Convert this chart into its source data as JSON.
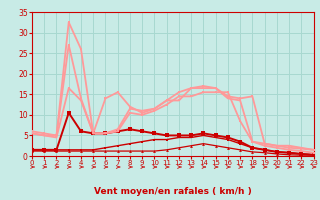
{
  "xlabel": "Vent moyen/en rafales ( km/h )",
  "xlim": [
    0,
    23
  ],
  "ylim": [
    0,
    35
  ],
  "yticks": [
    0,
    5,
    10,
    15,
    20,
    25,
    30,
    35
  ],
  "xticks": [
    0,
    1,
    2,
    3,
    4,
    5,
    6,
    7,
    8,
    9,
    10,
    11,
    12,
    13,
    14,
    15,
    16,
    17,
    18,
    19,
    20,
    21,
    22,
    23
  ],
  "bg_color": "#c8ebe6",
  "grid_color": "#a8d8d0",
  "series": [
    {
      "x": [
        0,
        1,
        2,
        3,
        4,
        5,
        6,
        7,
        8,
        9,
        10,
        11,
        12,
        13,
        14,
        15,
        16,
        17,
        18,
        19,
        20,
        21,
        22,
        23
      ],
      "y": [
        1.2,
        1.2,
        1.2,
        1.2,
        1.2,
        1.2,
        1.2,
        1.2,
        1.2,
        1.2,
        1.2,
        1.5,
        2.0,
        2.5,
        3.0,
        2.5,
        2.0,
        1.5,
        1.0,
        0.8,
        0.5,
        0.3,
        0.2,
        0.2
      ],
      "color": "#cc0000",
      "lw": 0.9,
      "marker": "^",
      "ms": 2.0,
      "alpha": 1.0
    },
    {
      "x": [
        0,
        1,
        2,
        3,
        4,
        5,
        6,
        7,
        8,
        9,
        10,
        11,
        12,
        13,
        14,
        15,
        16,
        17,
        18,
        19,
        20,
        21,
        22,
        23
      ],
      "y": [
        1.5,
        1.5,
        1.5,
        1.5,
        1.5,
        1.5,
        2.0,
        2.5,
        3.0,
        3.5,
        4.0,
        4.0,
        4.5,
        4.5,
        5.0,
        4.5,
        4.0,
        3.0,
        2.0,
        1.5,
        1.0,
        0.8,
        0.5,
        0.3
      ],
      "color": "#cc0000",
      "lw": 1.0,
      "marker": "s",
      "ms": 2.0,
      "alpha": 1.0
    },
    {
      "x": [
        0,
        1,
        2,
        3,
        4,
        5,
        6,
        7,
        8,
        9,
        10,
        11,
        12,
        13,
        14,
        15,
        16,
        17,
        18,
        19,
        20,
        21,
        22,
        23
      ],
      "y": [
        1.5,
        1.5,
        1.5,
        10.5,
        6.0,
        5.5,
        5.5,
        6.0,
        6.5,
        6.0,
        5.5,
        5.0,
        5.0,
        5.0,
        5.5,
        5.0,
        4.5,
        3.5,
        2.0,
        1.5,
        1.0,
        0.8,
        0.5,
        0.3
      ],
      "color": "#cc0000",
      "lw": 1.4,
      "marker": "s",
      "ms": 2.2,
      "alpha": 1.0
    },
    {
      "x": [
        0,
        1,
        2,
        3,
        4,
        5,
        6,
        7,
        8,
        9,
        10,
        11,
        12,
        13,
        14,
        15,
        16,
        17,
        18,
        19,
        20,
        21,
        22,
        23
      ],
      "y": [
        5.5,
        5.0,
        4.5,
        16.5,
        13.5,
        5.5,
        5.5,
        6.0,
        10.5,
        10.0,
        11.0,
        12.5,
        14.5,
        14.5,
        15.5,
        15.5,
        15.5,
        8.5,
        3.5,
        2.5,
        2.0,
        1.5,
        1.2,
        0.8
      ],
      "color": "#ff9999",
      "lw": 1.3,
      "marker": "s",
      "ms": 2.0,
      "alpha": 1.0
    },
    {
      "x": [
        0,
        1,
        2,
        3,
        4,
        5,
        6,
        7,
        8,
        9,
        10,
        11,
        12,
        13,
        14,
        15,
        16,
        17,
        18,
        19,
        20,
        21,
        22,
        23
      ],
      "y": [
        6.0,
        5.5,
        5.0,
        27.0,
        14.0,
        5.5,
        5.5,
        6.5,
        11.5,
        11.0,
        11.5,
        13.5,
        15.5,
        16.5,
        16.5,
        16.5,
        14.0,
        13.5,
        3.5,
        3.0,
        2.5,
        2.0,
        1.8,
        1.5
      ],
      "color": "#ff9999",
      "lw": 1.3,
      "marker": "s",
      "ms": 2.0,
      "alpha": 1.0
    },
    {
      "x": [
        0,
        1,
        2,
        3,
        4,
        5,
        6,
        7,
        8,
        9,
        10,
        11,
        12,
        13,
        14,
        15,
        16,
        17,
        18,
        19,
        20,
        21,
        22,
        23
      ],
      "y": [
        5.5,
        5.0,
        5.0,
        32.5,
        26.0,
        5.5,
        14.0,
        15.5,
        12.0,
        10.5,
        11.5,
        13.5,
        13.5,
        16.5,
        17.0,
        16.5,
        14.5,
        14.0,
        14.5,
        3.0,
        2.5,
        2.5,
        2.0,
        1.5
      ],
      "color": "#ff9999",
      "lw": 1.3,
      "marker": "s",
      "ms": 2.0,
      "alpha": 1.0
    }
  ],
  "tick_color": "#cc0000",
  "axis_color": "#cc0000",
  "label_color": "#cc0000"
}
